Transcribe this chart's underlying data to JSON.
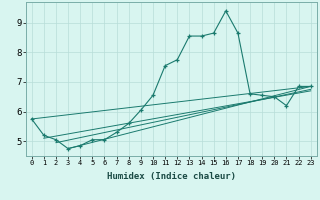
{
  "xlabel": "Humidex (Indice chaleur)",
  "bg_color": "#d8f5f0",
  "line_color": "#1a7a6e",
  "grid_color": "#b8ddd8",
  "spine_color": "#7aada8",
  "xlim": [
    -0.5,
    23.5
  ],
  "ylim": [
    4.5,
    9.7
  ],
  "yticks": [
    5,
    6,
    7,
    8,
    9
  ],
  "xticks": [
    0,
    1,
    2,
    3,
    4,
    5,
    6,
    7,
    8,
    9,
    10,
    11,
    12,
    13,
    14,
    15,
    16,
    17,
    18,
    19,
    20,
    21,
    22,
    23
  ],
  "series": [
    [
      0,
      5.75
    ],
    [
      1,
      5.2
    ],
    [
      2,
      5.05
    ],
    [
      3,
      4.75
    ],
    [
      4,
      4.85
    ],
    [
      5,
      5.05
    ],
    [
      6,
      5.05
    ],
    [
      7,
      5.3
    ],
    [
      8,
      5.6
    ],
    [
      9,
      6.05
    ],
    [
      10,
      6.55
    ],
    [
      11,
      7.55
    ],
    [
      12,
      7.75
    ],
    [
      13,
      8.55
    ],
    [
      14,
      8.55
    ],
    [
      15,
      8.65
    ],
    [
      16,
      9.4
    ],
    [
      17,
      8.65
    ],
    [
      18,
      6.6
    ],
    [
      19,
      6.55
    ],
    [
      20,
      6.5
    ],
    [
      21,
      6.2
    ],
    [
      22,
      6.85
    ],
    [
      23,
      6.85
    ]
  ],
  "linear_series": [
    [
      [
        0,
        5.75
      ],
      [
        23,
        6.85
      ]
    ],
    [
      [
        1,
        5.1
      ],
      [
        23,
        6.7
      ]
    ],
    [
      [
        2,
        4.95
      ],
      [
        23,
        6.75
      ]
    ],
    [
      [
        3,
        4.75
      ],
      [
        23,
        6.85
      ]
    ]
  ],
  "xlabel_fontsize": 6.5,
  "tick_fontsize_x": 5.0,
  "tick_fontsize_y": 6.5
}
